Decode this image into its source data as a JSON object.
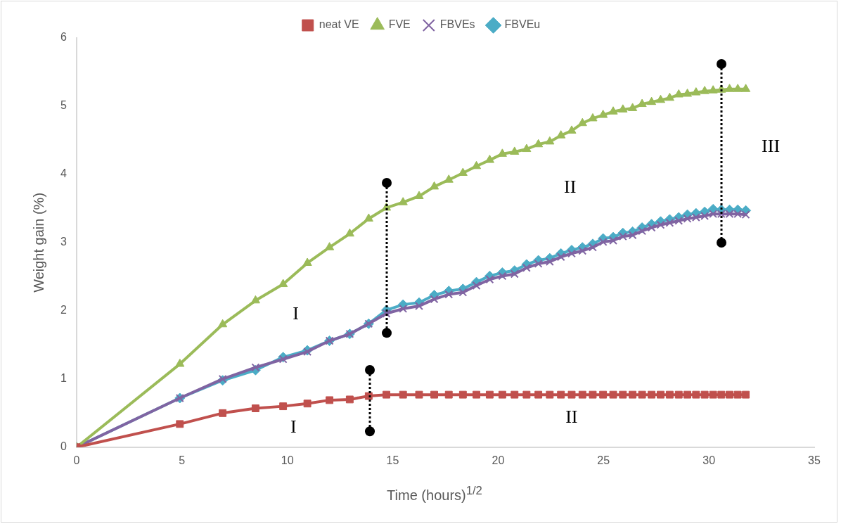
{
  "chart_data": {
    "type": "line",
    "xlabel": "Time (hours)$^{1/2}$",
    "ylabel": "Weight gain (%)",
    "x": [
      0,
      4.9,
      6.93,
      8.49,
      9.8,
      10.95,
      12,
      12.96,
      13.86,
      14.7,
      15.49,
      16.25,
      16.97,
      17.66,
      18.33,
      18.97,
      19.6,
      20.2,
      20.78,
      21.35,
      21.91,
      22.45,
      22.98,
      23.49,
      24,
      24.49,
      24.98,
      25.46,
      25.92,
      26.38,
      26.83,
      27.28,
      27.71,
      28.14,
      28.57,
      28.98,
      29.39,
      29.8,
      30.2,
      30.59,
      30.98,
      31.37,
      31.75
    ],
    "series": [
      {
        "name": "neat VE",
        "color": "#c0504d",
        "marker": "square",
        "values": [
          0,
          0.34,
          0.5,
          0.57,
          0.6,
          0.64,
          0.69,
          0.7,
          0.75,
          0.77,
          0.77,
          0.77,
          0.77,
          0.77,
          0.77,
          0.77,
          0.77,
          0.77,
          0.77,
          0.77,
          0.77,
          0.77,
          0.77,
          0.77,
          0.77,
          0.77,
          0.77,
          0.77,
          0.77,
          0.77,
          0.77,
          0.77,
          0.77,
          0.77,
          0.77,
          0.77,
          0.77,
          0.77,
          0.77,
          0.77,
          0.77,
          0.77,
          0.77
        ]
      },
      {
        "name": "FVE",
        "color": "#9bbb59",
        "marker": "triangle",
        "values": [
          0,
          1.22,
          1.8,
          2.15,
          2.39,
          2.7,
          2.93,
          3.13,
          3.35,
          3.51,
          3.59,
          3.68,
          3.82,
          3.92,
          4.02,
          4.12,
          4.21,
          4.3,
          4.33,
          4.37,
          4.44,
          4.48,
          4.57,
          4.64,
          4.75,
          4.82,
          4.87,
          4.92,
          4.95,
          4.97,
          5.03,
          5.06,
          5.09,
          5.12,
          5.17,
          5.18,
          5.2,
          5.22,
          5.23,
          5.24,
          5.25,
          5.25,
          5.25
        ]
      },
      {
        "name": "FBVEs",
        "color": "#8064a2",
        "marker": "cross",
        "values": [
          0,
          0.72,
          1,
          1.17,
          1.29,
          1.4,
          1.56,
          1.66,
          1.81,
          1.96,
          2.03,
          2.07,
          2.17,
          2.24,
          2.27,
          2.37,
          2.46,
          2.51,
          2.54,
          2.63,
          2.69,
          2.72,
          2.79,
          2.84,
          2.88,
          2.93,
          3.01,
          3.03,
          3.09,
          3.11,
          3.17,
          3.22,
          3.26,
          3.29,
          3.32,
          3.35,
          3.37,
          3.39,
          3.42,
          3.42,
          3.42,
          3.42,
          3.41
        ]
      },
      {
        "name": "FBVEu",
        "color": "#4bacc6",
        "marker": "diamond",
        "values": [
          0,
          0.72,
          0.98,
          1.13,
          1.32,
          1.42,
          1.56,
          1.66,
          1.81,
          2.01,
          2.09,
          2.12,
          2.23,
          2.29,
          2.32,
          2.42,
          2.51,
          2.56,
          2.59,
          2.68,
          2.74,
          2.77,
          2.84,
          2.89,
          2.93,
          2.98,
          3.06,
          3.08,
          3.14,
          3.16,
          3.22,
          3.27,
          3.31,
          3.34,
          3.37,
          3.41,
          3.43,
          3.45,
          3.49,
          3.48,
          3.48,
          3.48,
          3.47
        ]
      }
    ],
    "xlim": [
      0,
      35
    ],
    "xticks": [
      0,
      5,
      10,
      15,
      20,
      25,
      30,
      35
    ],
    "ylim": [
      0,
      6
    ],
    "yticks": [
      0,
      1,
      2,
      3,
      4,
      5,
      6
    ],
    "grid": false,
    "legend": "top",
    "line_style": "solid",
    "annotations": [
      "I",
      "I",
      "II",
      "II",
      "III"
    ]
  }
}
